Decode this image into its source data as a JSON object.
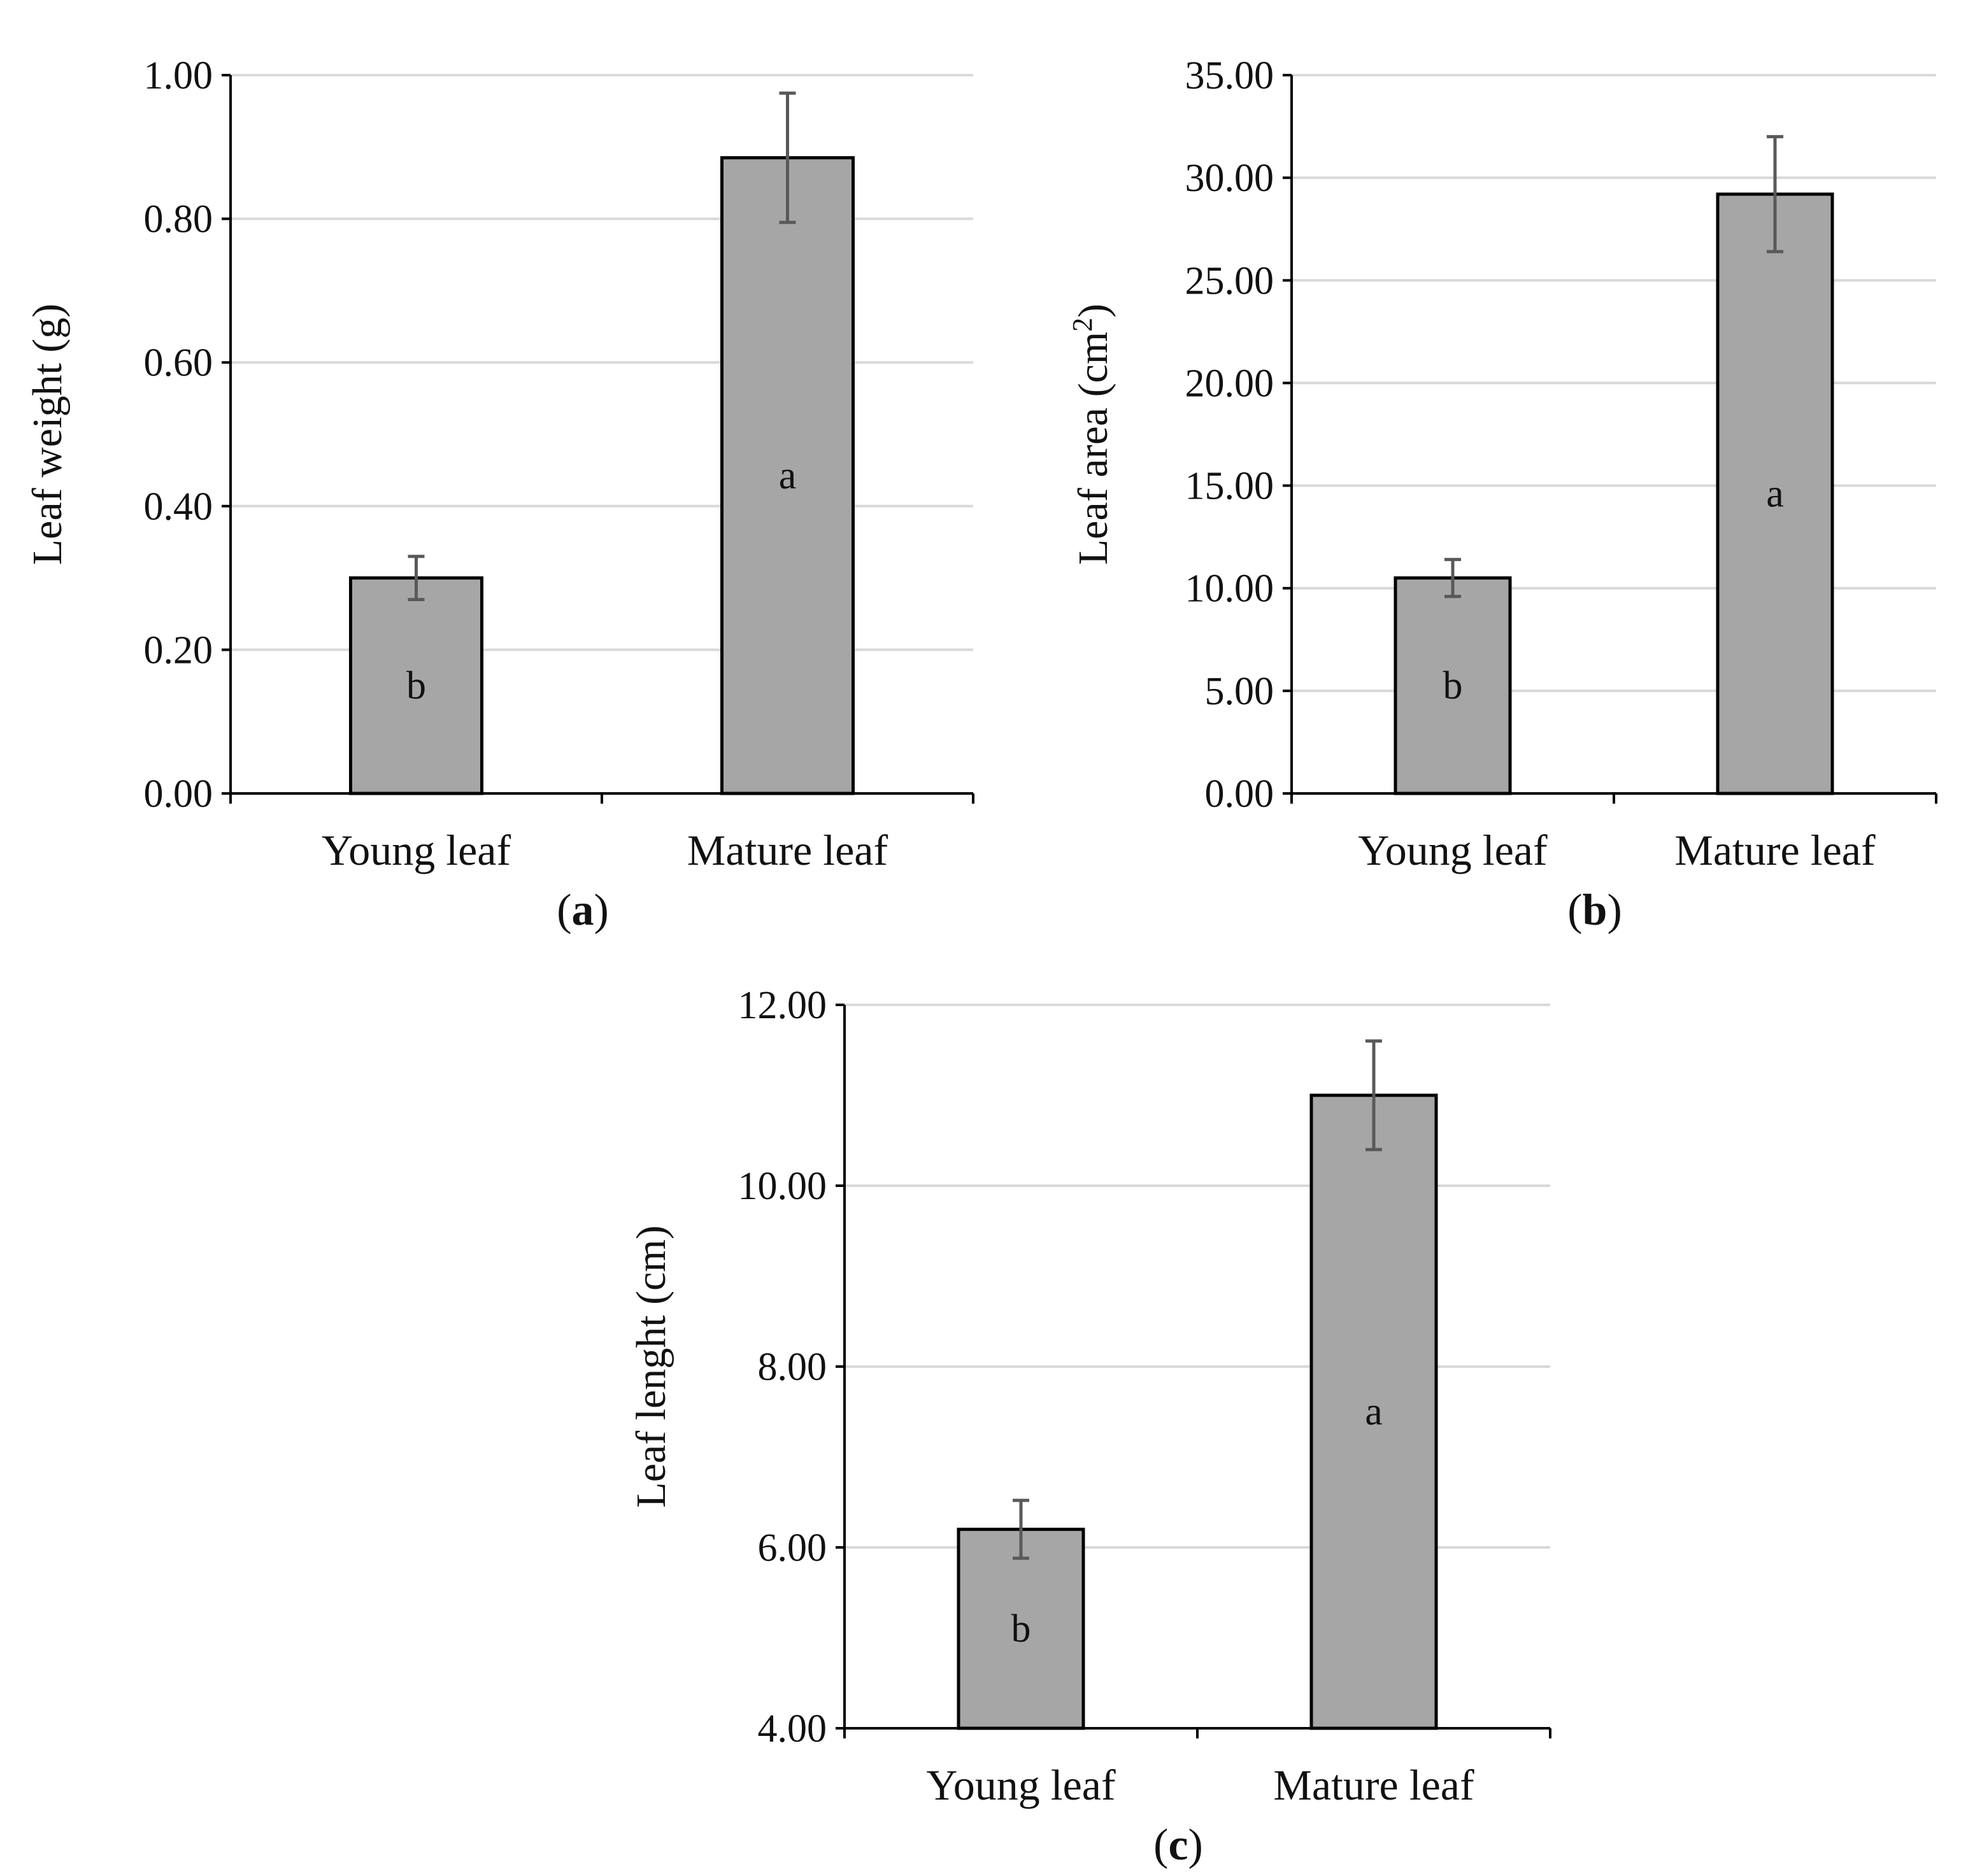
{
  "chart_data": [
    {
      "type": "bar",
      "panel": "a",
      "panel_label": {
        "open": "(",
        "letter": "a",
        "close": ")"
      },
      "categories": [
        "Young leaf",
        "Mature leaf"
      ],
      "values": [
        0.3,
        0.885
      ],
      "errors": [
        0.03,
        0.09
      ],
      "letters": [
        "b",
        "a"
      ],
      "ylabel": {
        "text": "Leaf weight (g)",
        "sup": "",
        "after": ""
      },
      "ylim": [
        0,
        1
      ],
      "ystep": 0.2,
      "yticks": [
        "0.00",
        "0.20",
        "0.40",
        "0.60",
        "0.80",
        "1.00"
      ],
      "grid": true
    },
    {
      "type": "bar",
      "panel": "b",
      "panel_label": {
        "open": "(",
        "letter": "b",
        "close": ")"
      },
      "categories": [
        "Young leaf",
        "Mature leaf"
      ],
      "values": [
        10.5,
        29.2
      ],
      "errors": [
        0.9,
        2.8
      ],
      "letters": [
        "b",
        "a"
      ],
      "ylabel": {
        "text": "Leaf area (cm",
        "sup": "2",
        "after": ")"
      },
      "ylim": [
        0,
        35
      ],
      "ystep": 5,
      "yticks": [
        "0.00",
        "5.00",
        "10.00",
        "15.00",
        "20.00",
        "25.00",
        "30.00",
        "35.00"
      ],
      "grid": true
    },
    {
      "type": "bar",
      "panel": "c",
      "panel_label": {
        "open": "(",
        "letter": "c",
        "close": ")"
      },
      "categories": [
        "Young leaf",
        "Mature leaf"
      ],
      "values": [
        6.2,
        11.0
      ],
      "errors": [
        0.32,
        0.6
      ],
      "letters": [
        "b",
        "a"
      ],
      "ylabel": {
        "text": "Leaf lenght (cm)",
        "sup": "",
        "after": ""
      },
      "ylim": [
        4,
        12
      ],
      "ystep": 2,
      "yticks": [
        "4.00",
        "6.00",
        "8.00",
        "10.00",
        "12.00"
      ],
      "grid": true
    }
  ],
  "colors": {
    "bar_fill": "#a6a6a6",
    "bar_stroke": "#000000",
    "grid": "#d9d9d9",
    "axis": "#000000",
    "error_bar": "#595959"
  }
}
